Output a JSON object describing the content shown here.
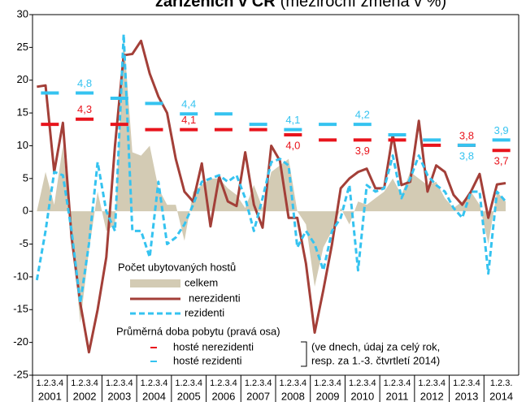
{
  "chart_data": {
    "type": "line",
    "title": "zařízeních v ČR",
    "subtitle": "(meziroční změna v %)",
    "years": [
      "2001",
      "2002",
      "2003",
      "2004",
      "2005",
      "2006",
      "2007",
      "2008",
      "2009",
      "2010",
      "2011",
      "2012",
      "2013",
      "2014"
    ],
    "quarter_labels": [
      "1.2.3.4",
      "1.2.3.4",
      "1.2.3.4",
      "1.2.3.4",
      "1.2.3.4",
      "1.2.3.4",
      "1.2.3.4",
      "1.2.3.4",
      "1.2.3.4",
      "1.2.3.4",
      "1.2.3.4",
      "1.2.3.4",
      "1.2.3.4",
      "1.2.3."
    ],
    "ylim": [
      -25,
      30
    ],
    "yticks": [
      -25,
      -20,
      -15,
      -10,
      -5,
      0,
      5,
      10,
      15,
      20,
      25,
      30
    ],
    "y2lim": [
      -0.6,
      6.3
    ],
    "grid": false,
    "legend_group_titles": [
      "Počet ubytovaných hostů",
      "Průměrná doba pobytu (pravá osa)"
    ],
    "note": [
      "(ve dnech, údaj za  celý rok,",
      "resp. za 1.-3. čtvrtletí 2014)"
    ],
    "series": [
      {
        "name": "celkem",
        "type": "area",
        "color": "#d3cbb4",
        "values": [
          0,
          6,
          1,
          10,
          -3,
          -17,
          -6,
          3,
          -3,
          -2,
          27,
          9,
          8.5,
          10,
          3.5,
          1,
          1,
          -4.5,
          3,
          4,
          5,
          5,
          3.5,
          2.5,
          0.5,
          4,
          0.5,
          6,
          7,
          8,
          0,
          -2,
          -11.5,
          -5.5,
          -3,
          0.5,
          -2,
          1.5,
          1,
          2,
          3,
          5,
          2.5,
          6,
          5,
          4,
          4.5,
          2,
          0.5,
          1.5,
          3,
          1,
          -5,
          3,
          1.5
        ]
      },
      {
        "name": "nerezidenti",
        "type": "line",
        "color": "#a33f38",
        "values": [
          19,
          19.2,
          6,
          13.5,
          -4,
          -14,
          -21.5,
          -15,
          -7,
          10,
          23.8,
          24,
          26,
          21,
          17.5,
          15,
          8,
          3,
          1.5,
          7.3,
          -2.3,
          5.3,
          1.5,
          0.8,
          9,
          1,
          -2.5,
          10,
          7.7,
          -1,
          -1,
          -8,
          -18.5,
          -12,
          -5,
          3.5,
          5,
          6,
          6.5,
          3.5,
          3.5,
          11.7,
          4,
          4.5,
          13.8,
          3,
          7,
          6,
          2.5,
          1,
          3,
          5.7,
          -1,
          4.1,
          4.3
        ]
      },
      {
        "name": "rezidenti",
        "type": "dashed",
        "color": "#35c3f0",
        "values": [
          -10.5,
          -3,
          6,
          5.5,
          -3,
          -14,
          -5,
          7.5,
          0,
          -3,
          27,
          -3,
          -3,
          -7,
          4.5,
          -5,
          -4,
          -2,
          1,
          4.5,
          5,
          5.5,
          4.5,
          5.5,
          2,
          -3,
          2,
          7.5,
          8,
          7,
          -5.5,
          -3,
          -5,
          -9,
          -3,
          -1,
          4,
          -9,
          4,
          3,
          3.5,
          8.5,
          2,
          5,
          8.5,
          5.5,
          4,
          3,
          0.5,
          -1,
          3,
          3,
          -9.5,
          3,
          1.5
        ]
      }
    ],
    "annual_series": [
      {
        "name": "hosté nerezidenti",
        "axis": "y2",
        "color": "#e8141c",
        "values": [
          4.2,
          4.3,
          4.2,
          4.1,
          4.1,
          4.1,
          4.1,
          4.0,
          3.9,
          3.9,
          3.9,
          3.8,
          3.8,
          3.7
        ],
        "value_labels": [
          null,
          "4,3",
          null,
          null,
          "4,1",
          null,
          null,
          "4,0",
          null,
          "3,9",
          null,
          null,
          "3,8",
          "3,7"
        ]
      },
      {
        "name": "hosté rezidenti",
        "axis": "y2",
        "color": "#35c3f0",
        "values": [
          4.8,
          4.8,
          4.7,
          4.6,
          4.4,
          4.4,
          4.2,
          4.1,
          4.2,
          4.2,
          4.0,
          3.9,
          3.8,
          3.9
        ],
        "value_labels": [
          null,
          "4,8",
          null,
          null,
          "4,4",
          null,
          null,
          "4,1",
          null,
          "4,2",
          null,
          null,
          "3,8",
          "3,9"
        ]
      }
    ]
  }
}
